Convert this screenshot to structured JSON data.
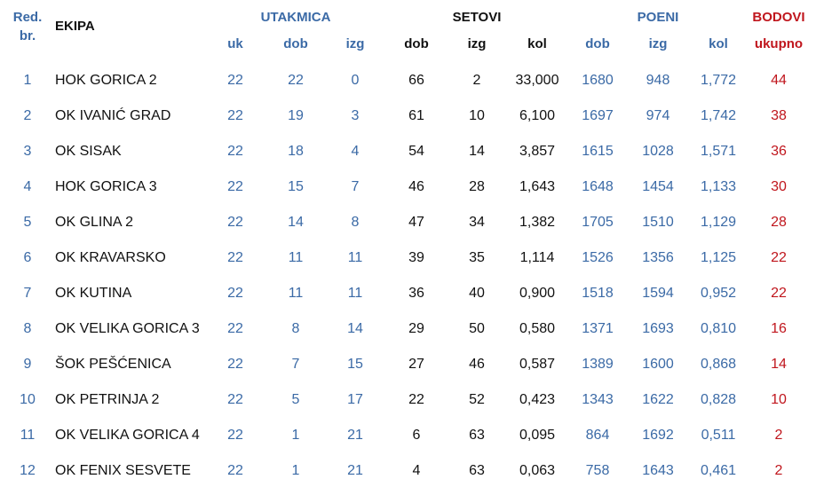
{
  "header": {
    "rank_label": [
      "Red.",
      "br."
    ],
    "team_label": "EKIPA",
    "groups": [
      "UTAKMICA",
      "SETOVI",
      "POENI",
      "BODOVI"
    ],
    "subheaders": [
      "uk",
      "dob",
      "izg",
      "dob",
      "izg",
      "kol",
      "dob",
      "izg",
      "kol",
      "ukupno"
    ]
  },
  "table": {
    "rows": [
      [
        "1",
        "HOK GORICA 2",
        "22",
        "22",
        "0",
        "66",
        "2",
        "33,000",
        "1680",
        "948",
        "1,772",
        "44"
      ],
      [
        "2",
        "OK IVANIĆ GRAD",
        "22",
        "19",
        "3",
        "61",
        "10",
        "6,100",
        "1697",
        "974",
        "1,742",
        "38"
      ],
      [
        "3",
        "OK SISAK",
        "22",
        "18",
        "4",
        "54",
        "14",
        "3,857",
        "1615",
        "1028",
        "1,571",
        "36"
      ],
      [
        "4",
        "HOK GORICA 3",
        "22",
        "15",
        "7",
        "46",
        "28",
        "1,643",
        "1648",
        "1454",
        "1,133",
        "30"
      ],
      [
        "5",
        "OK GLINA 2",
        "22",
        "14",
        "8",
        "47",
        "34",
        "1,382",
        "1705",
        "1510",
        "1,129",
        "28"
      ],
      [
        "6",
        "OK KRAVARSKO",
        "22",
        "11",
        "11",
        "39",
        "35",
        "1,114",
        "1526",
        "1356",
        "1,125",
        "22"
      ],
      [
        "7",
        "OK KUTINA",
        "22",
        "11",
        "11",
        "36",
        "40",
        "0,900",
        "1518",
        "1594",
        "0,952",
        "22"
      ],
      [
        "8",
        "OK VELIKA GORICA 3",
        "22",
        "8",
        "14",
        "29",
        "50",
        "0,580",
        "1371",
        "1693",
        "0,810",
        "16"
      ],
      [
        "9",
        "ŠOK PEŠĆENICA",
        "22",
        "7",
        "15",
        "27",
        "46",
        "0,587",
        "1389",
        "1600",
        "0,868",
        "14"
      ],
      [
        "10",
        "OK PETRINJA 2",
        "22",
        "5",
        "17",
        "22",
        "52",
        "0,423",
        "1343",
        "1622",
        "0,828",
        "10"
      ],
      [
        "11",
        "OK VELIKA GORICA 4",
        "22",
        "1",
        "21",
        "6",
        "63",
        "0,095",
        "864",
        "1692",
        "0,511",
        "2"
      ],
      [
        "12",
        "OK FENIX SESVETE",
        "22",
        "1",
        "21",
        "4",
        "63",
        "0,063",
        "758",
        "1643",
        "0,461",
        "2"
      ]
    ]
  }
}
